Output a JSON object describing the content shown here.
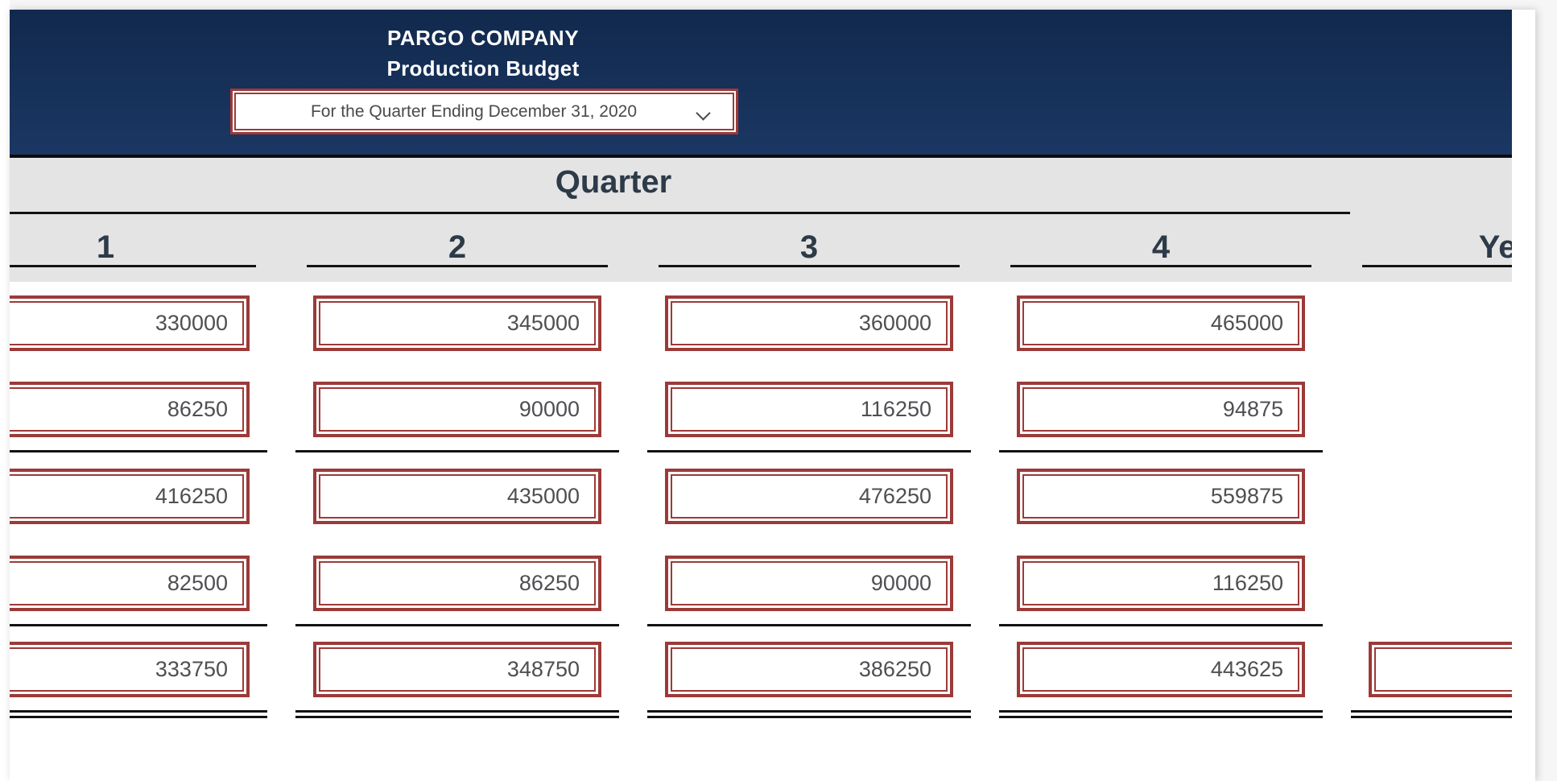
{
  "header": {
    "company": "PARGO COMPANY",
    "report": "Production Budget",
    "period": "For the Quarter Ending December 31, 2020"
  },
  "icons": {
    "dropdown_chevron": "chevron-down"
  },
  "table": {
    "group_header": "Quarter",
    "columns": [
      "1",
      "2",
      "3",
      "4",
      "Year"
    ],
    "rows": [
      {
        "values": [
          "330000",
          "345000",
          "360000",
          "465000",
          null
        ],
        "rule_after": "none"
      },
      {
        "values": [
          "86250",
          "90000",
          "116250",
          "94875",
          null
        ],
        "rule_after": "single"
      },
      {
        "values": [
          "416250",
          "435000",
          "476250",
          "559875",
          null
        ],
        "rule_after": "none"
      },
      {
        "values": [
          "82500",
          "86250",
          "90000",
          "116250",
          null
        ],
        "rule_after": "single"
      },
      {
        "values": [
          "333750",
          "348750",
          "386250",
          "443625",
          ""
        ],
        "rule_after": "double"
      }
    ]
  },
  "colors": {
    "navy_header": "#16315a",
    "input_border_maroon": "#9c3a38",
    "band_gray": "#e4e4e5",
    "rule_black": "#121212",
    "header_text": "#2d3a47",
    "value_text": "#4f4f53",
    "page_background": "#f6f6f7"
  }
}
